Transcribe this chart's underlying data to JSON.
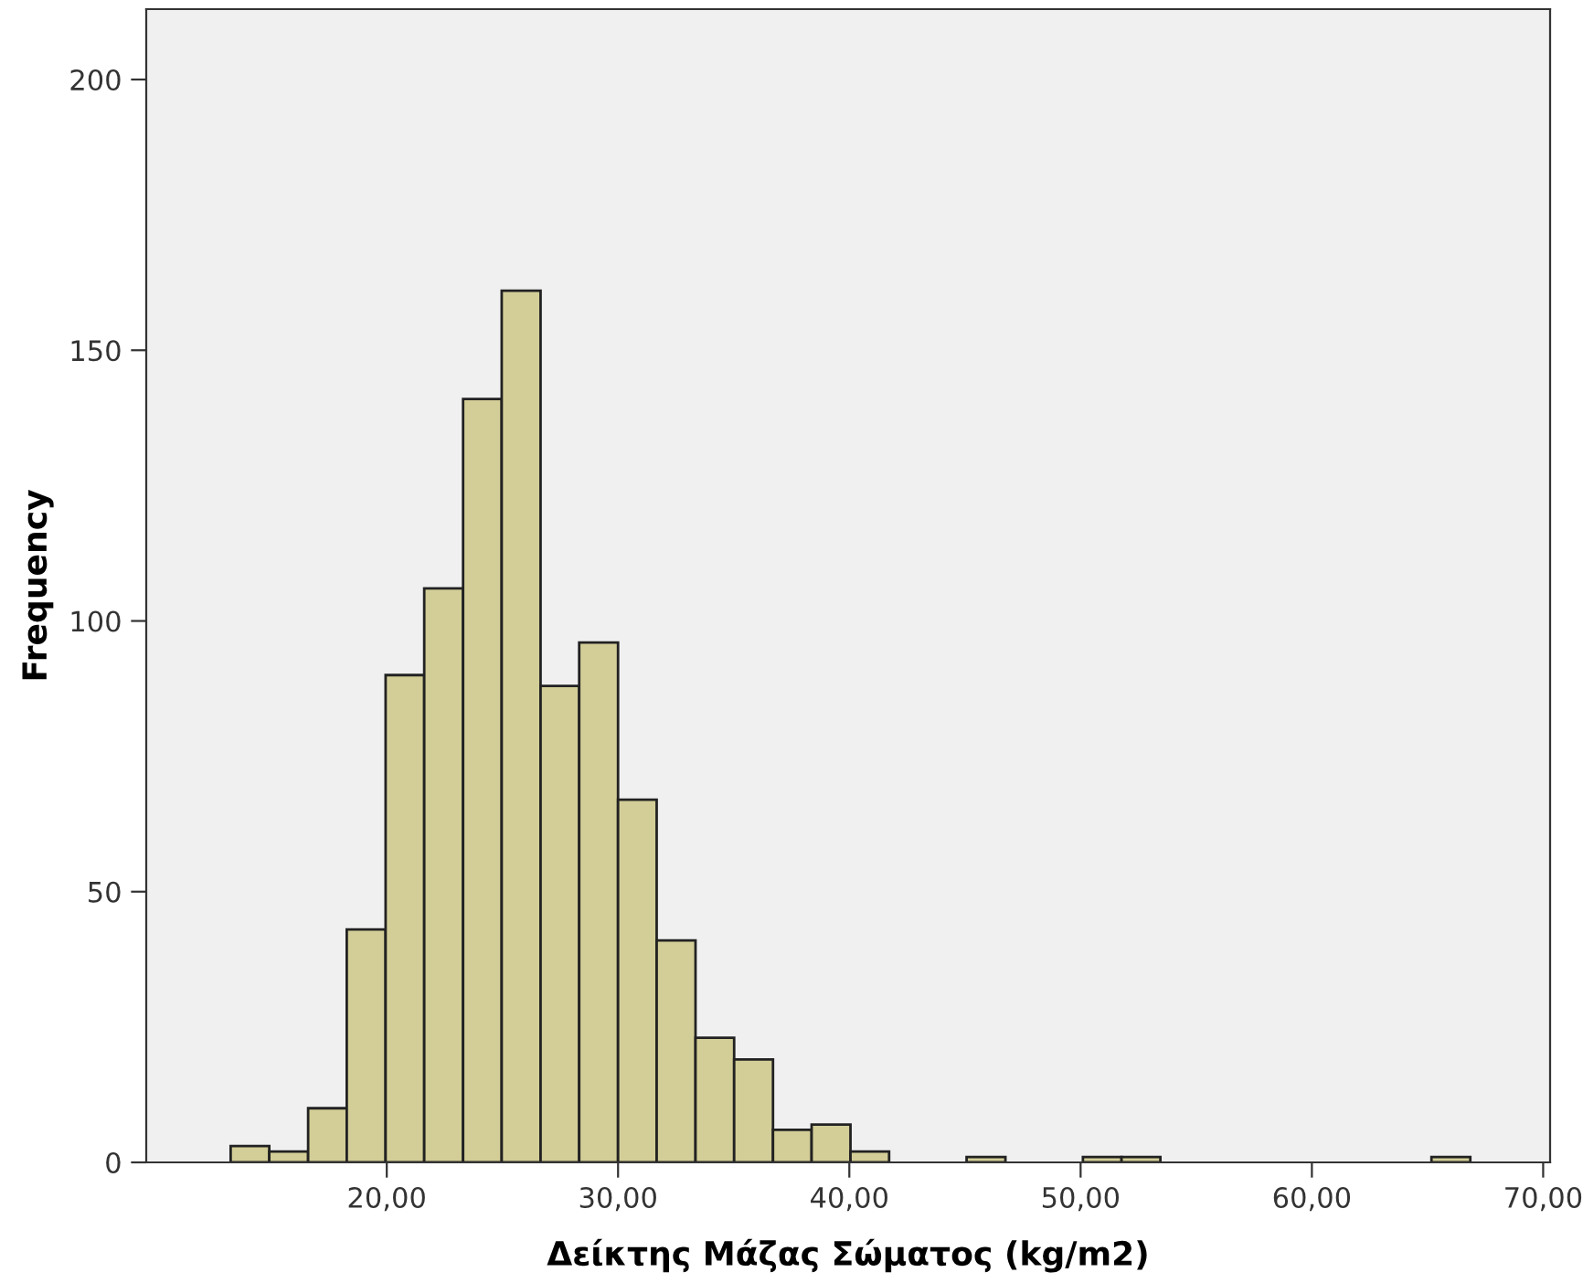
{
  "chart_data": {
    "type": "histogram",
    "xlabel": "Δείκτης Μάζας Σώματος (kg/m2)",
    "ylabel": "Frequency",
    "bins": [
      13.25,
      14.92,
      16.6,
      18.27,
      19.95,
      21.62,
      23.3,
      24.97,
      26.65,
      28.32,
      30.0,
      31.67,
      33.35,
      35.02,
      36.7,
      38.37,
      40.05,
      41.72,
      43.4,
      45.07,
      46.75,
      48.42,
      50.1,
      51.77,
      53.45,
      55.12,
      56.8,
      58.47,
      60.15,
      61.82,
      63.5,
      65.17,
      66.85
    ],
    "values": [
      3,
      2,
      10,
      43,
      90,
      106,
      141,
      161,
      88,
      96,
      67,
      41,
      23,
      19,
      6,
      7,
      2,
      0,
      0,
      1,
      0,
      0,
      1,
      1,
      0,
      0,
      0,
      0,
      0,
      0,
      0,
      1
    ],
    "color": "#d3ce97",
    "xlim": [
      9.6,
      70.3
    ],
    "ylim": [
      0,
      213
    ],
    "xticks": [
      {
        "value": 20,
        "label": "20,00"
      },
      {
        "value": 30,
        "label": "30,00"
      },
      {
        "value": 40,
        "label": "40,00"
      },
      {
        "value": 50,
        "label": "50,00"
      },
      {
        "value": 60,
        "label": "60,00"
      },
      {
        "value": 70,
        "label": "70,00"
      }
    ],
    "yticks": [
      0,
      50,
      100,
      150,
      200
    ],
    "grid": false
  }
}
